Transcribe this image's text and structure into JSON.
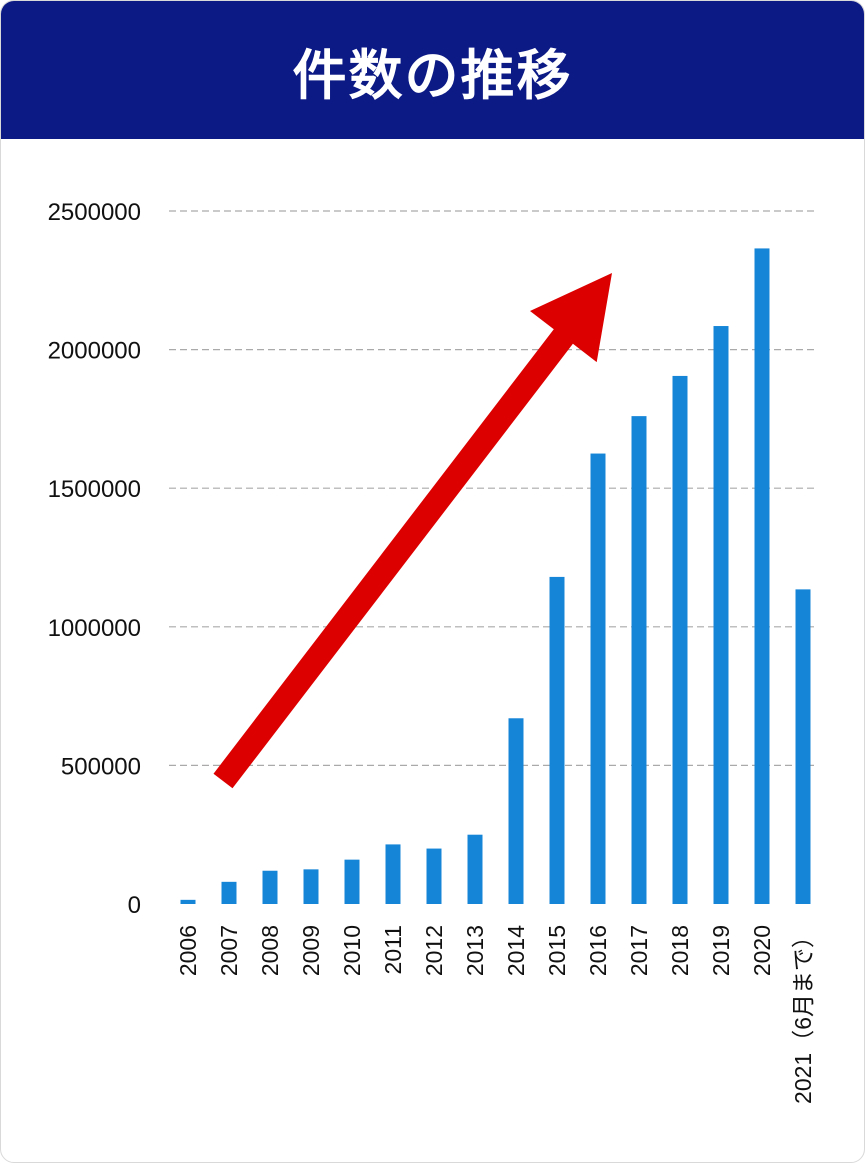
{
  "title": "件数の推移",
  "colors": {
    "header_bg": "#0c1a85",
    "bar": "#1585d8",
    "arrow": "#dd0000",
    "grid": "#aaaaaa"
  },
  "chart_data": {
    "type": "bar",
    "title": "件数の推移",
    "xlabel": "",
    "ylabel": "",
    "categories": [
      "2006",
      "2007",
      "2008",
      "2009",
      "2010",
      "2011",
      "2012",
      "2013",
      "2014",
      "2015",
      "2016",
      "2017",
      "2018",
      "2019",
      "2020",
      "2021（6月まで）"
    ],
    "values": [
      15000,
      80000,
      120000,
      125000,
      160000,
      215000,
      200000,
      250000,
      670000,
      1180000,
      1625000,
      1760000,
      1905000,
      2085000,
      2365000,
      1135000
    ],
    "ylim": [
      0,
      2500000
    ],
    "yticks": [
      0,
      500000,
      1000000,
      1500000,
      2000000,
      2500000
    ],
    "ytick_labels": [
      "0",
      "500000",
      "1000000",
      "1500000",
      "2000000",
      "2500000"
    ],
    "grid": "horizontal dashed",
    "annotations": [
      "red upward trend arrow"
    ]
  }
}
